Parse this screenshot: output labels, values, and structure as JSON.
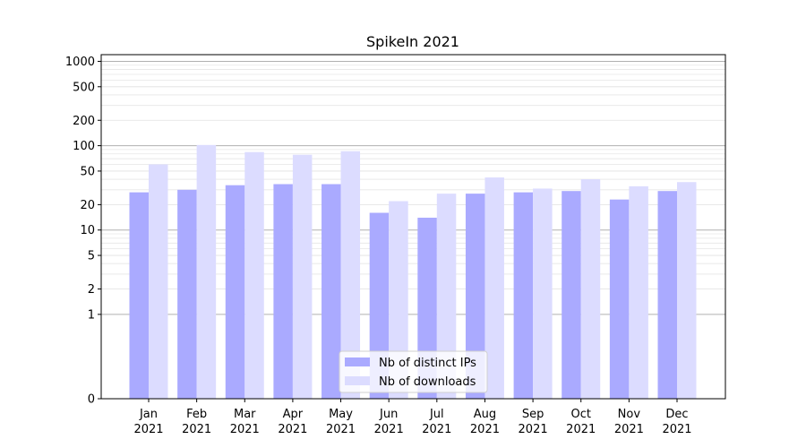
{
  "chart_data": {
    "type": "bar",
    "title": "SpikeIn 2021",
    "xlabel": "",
    "ylabel": "",
    "y_scale": "symlog",
    "ylim": [
      0,
      1200
    ],
    "y_ticks": [
      0,
      1,
      2,
      5,
      10,
      20,
      50,
      100,
      200,
      500,
      1000
    ],
    "y_tick_labels": [
      "0",
      "1",
      "2",
      "5",
      "10",
      "20",
      "50",
      "100",
      "200",
      "500",
      "1000"
    ],
    "grid": true,
    "legend_position": "lower-center",
    "categories": [
      [
        "Jan",
        "2021"
      ],
      [
        "Feb",
        "2021"
      ],
      [
        "Mar",
        "2021"
      ],
      [
        "Apr",
        "2021"
      ],
      [
        "May",
        "2021"
      ],
      [
        "Jun",
        "2021"
      ],
      [
        "Jul",
        "2021"
      ],
      [
        "Aug",
        "2021"
      ],
      [
        "Sep",
        "2021"
      ],
      [
        "Oct",
        "2021"
      ],
      [
        "Nov",
        "2021"
      ],
      [
        "Dec",
        "2021"
      ]
    ],
    "series": [
      {
        "name": "Nb of distinct IPs",
        "color": "#aaaaff",
        "values": [
          28,
          30,
          34,
          35,
          35,
          16,
          14,
          27,
          28,
          29,
          23,
          29
        ]
      },
      {
        "name": "Nb of downloads",
        "color": "#dcdcff",
        "values": [
          60,
          102,
          84,
          78,
          86,
          22,
          27,
          42,
          31,
          40,
          33,
          37
        ]
      }
    ]
  }
}
